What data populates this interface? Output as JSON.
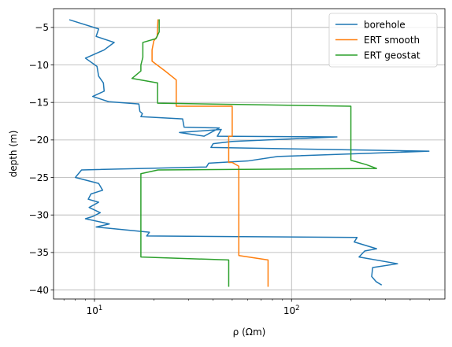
{
  "chart_data": {
    "type": "line",
    "xlabel": "ρ (Ωm)",
    "ylabel": "depth (m)",
    "x_scale": "log",
    "xlim": [
      6.2,
      600
    ],
    "ylim": [
      -41.2,
      -2.5
    ],
    "x_ticks": [
      {
        "value": 10,
        "base": "10",
        "exp": "1"
      },
      {
        "value": 100,
        "base": "10",
        "exp": "2"
      }
    ],
    "y_ticks": [
      {
        "value": -5,
        "label": "−5"
      },
      {
        "value": -10,
        "label": "−10"
      },
      {
        "value": -15,
        "label": "−15"
      },
      {
        "value": -20,
        "label": "−20"
      },
      {
        "value": -25,
        "label": "−25"
      },
      {
        "value": -30,
        "label": "−30"
      },
      {
        "value": -35,
        "label": "−35"
      },
      {
        "value": -40,
        "label": "−40"
      }
    ],
    "grid": true,
    "legend": "top-right",
    "series": [
      {
        "name": "borehole",
        "color": "#1f77b4",
        "points": [
          [
            7.5,
            -4.0
          ],
          [
            10.5,
            -5.2
          ],
          [
            10.2,
            -6.2
          ],
          [
            12.6,
            -7.0
          ],
          [
            11.2,
            -8.0
          ],
          [
            9.0,
            -9.1
          ],
          [
            10.3,
            -10.2
          ],
          [
            10.5,
            -11.5
          ],
          [
            11.1,
            -12.4
          ],
          [
            11.2,
            -13.5
          ],
          [
            9.8,
            -14.2
          ],
          [
            11.8,
            -14.9
          ],
          [
            16.8,
            -15.2
          ],
          [
            17.0,
            -16.2
          ],
          [
            17.5,
            -16.5
          ],
          [
            17.2,
            -16.9
          ],
          [
            28.0,
            -17.2
          ],
          [
            28.5,
            -18.3
          ],
          [
            43.0,
            -18.4
          ],
          [
            36.0,
            -19.5
          ],
          [
            27.0,
            -19.0
          ],
          [
            44.0,
            -18.6
          ],
          [
            42.0,
            -19.5
          ],
          [
            170.0,
            -19.6
          ],
          [
            50.0,
            -20.2
          ],
          [
            40.0,
            -20.5
          ],
          [
            39.0,
            -21.0
          ],
          [
            498.0,
            -21.5
          ],
          [
            85.0,
            -22.2
          ],
          [
            60.0,
            -22.8
          ],
          [
            38.0,
            -23.1
          ],
          [
            37.0,
            -23.6
          ],
          [
            8.6,
            -24.0
          ],
          [
            8.0,
            -25.0
          ],
          [
            10.5,
            -25.8
          ],
          [
            11.0,
            -26.7
          ],
          [
            9.6,
            -27.2
          ],
          [
            9.3,
            -27.9
          ],
          [
            10.5,
            -28.3
          ],
          [
            9.4,
            -29.0
          ],
          [
            10.7,
            -29.7
          ],
          [
            9.8,
            -30.2
          ],
          [
            9.0,
            -30.5
          ],
          [
            11.9,
            -31.2
          ],
          [
            10.2,
            -31.6
          ],
          [
            19.0,
            -32.3
          ],
          [
            18.4,
            -32.8
          ],
          [
            215.0,
            -33.0
          ],
          [
            208.0,
            -33.6
          ],
          [
            270.0,
            -34.5
          ],
          [
            235.0,
            -34.8
          ],
          [
            220.0,
            -35.6
          ],
          [
            345.0,
            -36.5
          ],
          [
            258.0,
            -37.0
          ],
          [
            255.0,
            -38.2
          ],
          [
            269.0,
            -38.9
          ],
          [
            285.0,
            -39.3
          ]
        ]
      },
      {
        "name": "ERT smooth",
        "color": "#ff7f0e",
        "points": [
          [
            21.0,
            -4.0
          ],
          [
            20.8,
            -6.2
          ],
          [
            20.0,
            -6.8
          ],
          [
            19.6,
            -8.0
          ],
          [
            19.6,
            -9.5
          ],
          [
            22.8,
            -10.8
          ],
          [
            26.0,
            -12.0
          ],
          [
            26.0,
            -15.5
          ],
          [
            50.0,
            -15.5
          ],
          [
            50.0,
            -19.5
          ],
          [
            48.0,
            -19.5
          ],
          [
            48.0,
            -23.0
          ],
          [
            50.0,
            -23.0
          ],
          [
            54.0,
            -23.5
          ],
          [
            54.0,
            -35.4
          ],
          [
            76.0,
            -36.0
          ],
          [
            76.0,
            -39.5
          ]
        ]
      },
      {
        "name": "ERT geostat",
        "color": "#2ca02c",
        "points": [
          [
            21.3,
            -4.0
          ],
          [
            21.3,
            -5.6
          ],
          [
            20.5,
            -6.5
          ],
          [
            17.6,
            -7.0
          ],
          [
            17.6,
            -9.0
          ],
          [
            17.2,
            -10.0
          ],
          [
            17.2,
            -10.8
          ],
          [
            15.5,
            -11.8
          ],
          [
            20.9,
            -12.4
          ],
          [
            20.9,
            -15.1
          ],
          [
            200.0,
            -15.5
          ],
          [
            200.0,
            -22.7
          ],
          [
            240.0,
            -23.3
          ],
          [
            270.0,
            -23.8
          ],
          [
            21.0,
            -24.0
          ],
          [
            17.2,
            -24.5
          ],
          [
            17.2,
            -35.6
          ],
          [
            48.0,
            -36.0
          ],
          [
            48.0,
            -39.5
          ]
        ]
      }
    ]
  }
}
